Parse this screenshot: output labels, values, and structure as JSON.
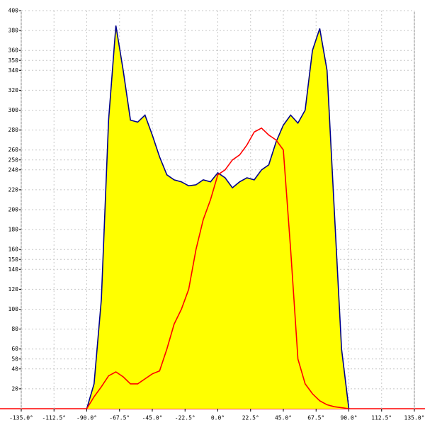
{
  "chart_data": {
    "type": "area",
    "x": [
      -90,
      -85,
      -80,
      -75,
      -70,
      -65,
      -60,
      -55,
      -50,
      -45,
      -40,
      -35,
      -30,
      -25,
      -20,
      -15,
      -10,
      -5,
      0,
      5,
      10,
      15,
      20,
      25,
      30,
      35,
      40,
      45,
      50,
      55,
      60,
      65,
      70,
      75,
      80,
      85,
      90
    ],
    "series": [
      {
        "color": "#00008b",
        "fill": "#ffff00",
        "values": [
          0,
          25,
          110,
          290,
          385,
          340,
          290,
          288,
          295,
          275,
          253,
          235,
          230,
          228,
          224,
          225,
          230,
          228,
          237,
          232,
          222,
          228,
          232,
          230,
          240,
          245,
          268,
          285,
          295,
          287,
          300,
          360,
          382,
          340,
          200,
          60,
          0
        ]
      },
      {
        "color": "#ff0000",
        "values": [
          0,
          12,
          22,
          33,
          37,
          32,
          25,
          25,
          30,
          35,
          38,
          60,
          85,
          100,
          120,
          160,
          190,
          210,
          235,
          240,
          250,
          255,
          265,
          278,
          282,
          275,
          270,
          260,
          160,
          50,
          25,
          15,
          8,
          4,
          2,
          1,
          0
        ]
      }
    ],
    "xlim": [
      -135,
      135
    ],
    "xticks": [
      {
        "value": -135,
        "label": "-135.0°"
      },
      {
        "value": -112.5,
        "label": "-112.5°"
      },
      {
        "value": -90,
        "label": "-90.0°"
      },
      {
        "value": -67.5,
        "label": "-67.5°"
      },
      {
        "value": -45,
        "label": "-45.0°"
      },
      {
        "value": -22.5,
        "label": "-22.5°"
      },
      {
        "value": 0,
        "label": "0.0°"
      },
      {
        "value": 22.5,
        "label": "22.5°"
      },
      {
        "value": 45,
        "label": "45.0°"
      },
      {
        "value": 67.5,
        "label": "67.5°"
      },
      {
        "value": 90,
        "label": "90.0°"
      },
      {
        "value": 112.5,
        "label": "112.5°"
      },
      {
        "value": 135,
        "label": "135.0°"
      }
    ],
    "ylim": [
      0,
      400
    ],
    "yticks": [
      20,
      40,
      50,
      60,
      80,
      100,
      120,
      140,
      150,
      160,
      180,
      200,
      220,
      240,
      250,
      260,
      280,
      300,
      320,
      340,
      350,
      360,
      380,
      400
    ],
    "grid": true
  }
}
